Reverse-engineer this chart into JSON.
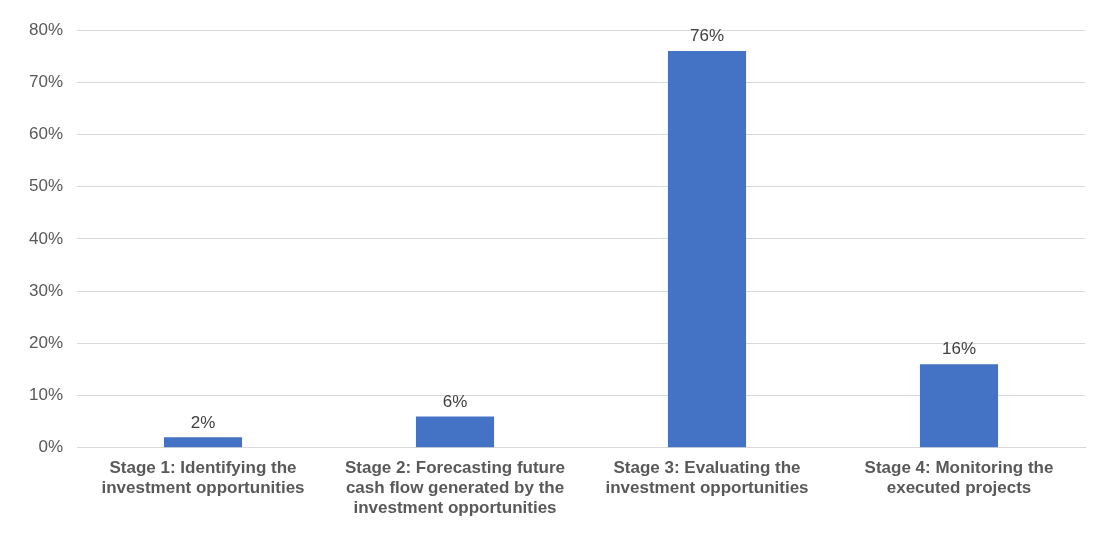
{
  "chart_data": {
    "type": "bar",
    "categories": [
      "Stage 1: Identifying the investment opportunities",
      "Stage 2: Forecasting future cash flow generated by the investment opportunities",
      "Stage 3: Evaluating the investment opportunities",
      "Stage 4: Monitoring the executed projects"
    ],
    "values": [
      2,
      6,
      76,
      16
    ],
    "color": "#4472c4",
    "value_labels": [
      "2%",
      "6%",
      "76%",
      "16%"
    ],
    "ylim": [
      0,
      80
    ],
    "yticks": [
      {
        "value": 0,
        "label": "0%"
      },
      {
        "value": 10,
        "label": "10%"
      },
      {
        "value": 20,
        "label": "20%"
      },
      {
        "value": 30,
        "label": "30%"
      },
      {
        "value": 40,
        "label": "40%"
      },
      {
        "value": 50,
        "label": "50%"
      },
      {
        "value": 60,
        "label": "60%"
      },
      {
        "value": 70,
        "label": "70%"
      },
      {
        "value": 80,
        "label": "80%"
      }
    ],
    "grid": "y",
    "legend": false
  }
}
